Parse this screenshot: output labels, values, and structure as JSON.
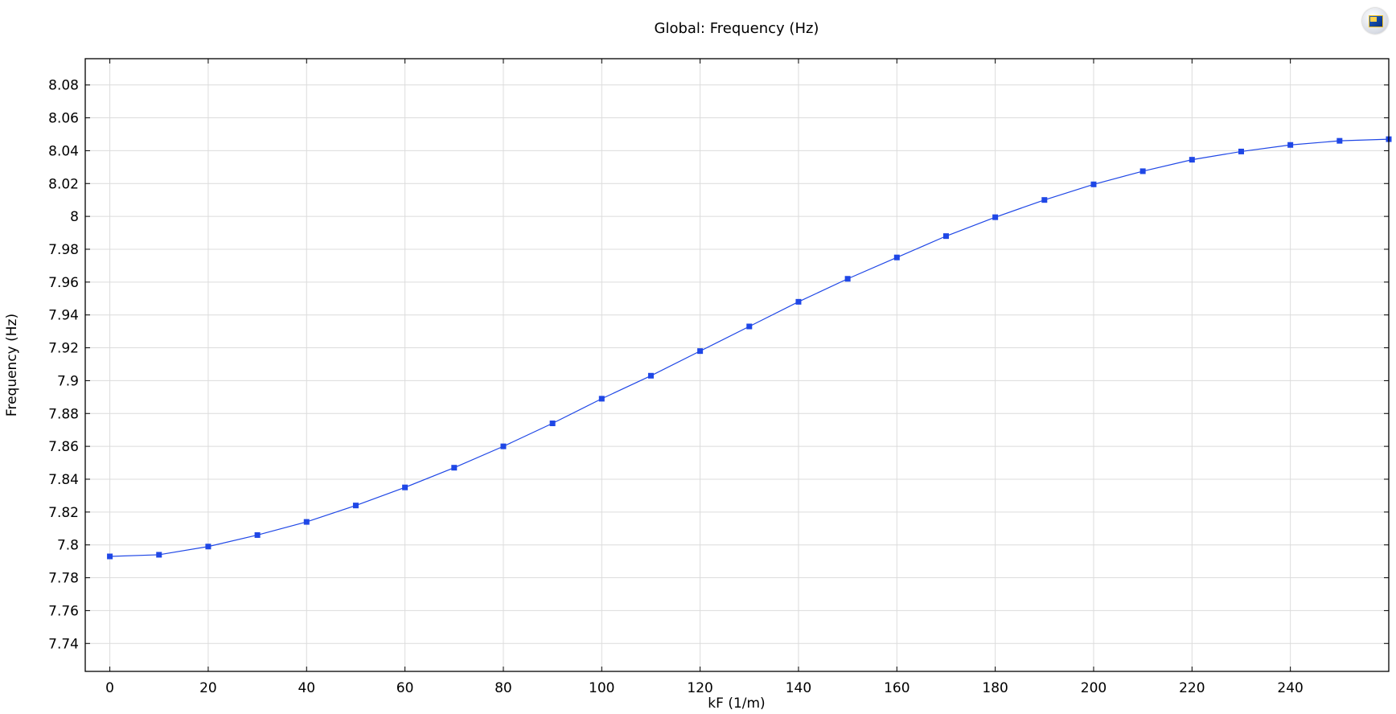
{
  "chart_data": {
    "type": "line",
    "title": "Global: Frequency (Hz)",
    "xlabel": "kF (1/m)",
    "ylabel": "Frequency (Hz)",
    "xlim": [
      -5,
      260
    ],
    "ylim": [
      7.723,
      8.096
    ],
    "x_ticks": [
      0,
      20,
      40,
      60,
      80,
      100,
      120,
      140,
      160,
      180,
      200,
      220,
      240
    ],
    "x_tick_labels": [
      "0",
      "20",
      "40",
      "60",
      "80",
      "100",
      "120",
      "140",
      "160",
      "180",
      "200",
      "220",
      "240"
    ],
    "y_ticks": [
      7.74,
      7.76,
      7.78,
      7.8,
      7.82,
      7.84,
      7.86,
      7.88,
      7.9,
      7.92,
      7.94,
      7.96,
      7.98,
      8.0,
      8.02,
      8.04,
      8.06,
      8.08
    ],
    "y_tick_labels": [
      "7.74",
      "7.76",
      "7.78",
      "7.8",
      "7.82",
      "7.84",
      "7.86",
      "7.88",
      "7.9",
      "7.92",
      "7.94",
      "7.96",
      "7.98",
      "8",
      "8.02",
      "8.04",
      "8.06",
      "8.08"
    ],
    "grid": true,
    "series": [
      {
        "color": "#1f47e6",
        "marker": "square",
        "x": [
          0,
          10,
          20,
          30,
          40,
          50,
          60,
          70,
          80,
          90,
          100,
          110,
          120,
          130,
          140,
          150,
          160,
          170,
          180,
          190,
          200,
          210,
          220,
          230,
          240,
          250,
          260
        ],
        "y": [
          7.793,
          7.794,
          7.799,
          7.806,
          7.814,
          7.824,
          7.835,
          7.847,
          7.86,
          7.874,
          7.889,
          7.903,
          7.918,
          7.933,
          7.948,
          7.962,
          7.975,
          7.988,
          7.9995,
          8.01,
          8.0195,
          8.0275,
          8.0345,
          8.0395,
          8.0435,
          8.046,
          8.047
        ]
      }
    ]
  },
  "icons": {
    "logo": "app-logo-icon"
  }
}
